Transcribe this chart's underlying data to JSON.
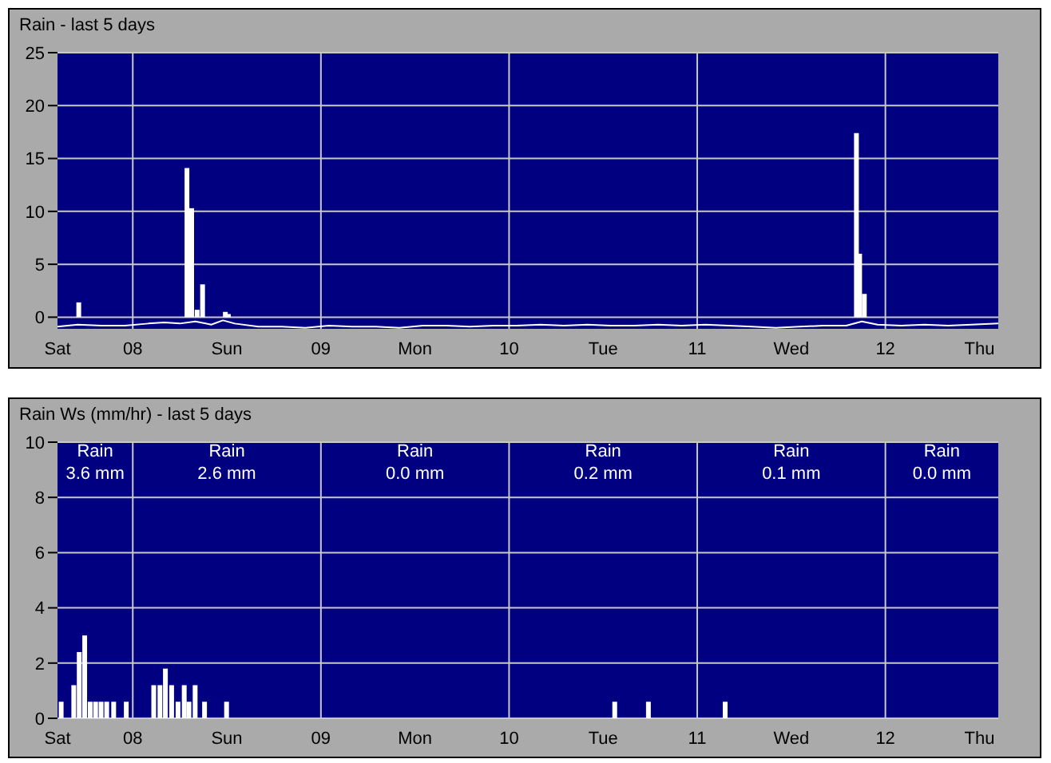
{
  "chart_data": [
    {
      "type": "bar",
      "title": "Rain - last 5 days",
      "xlim": [
        7.6,
        12.6
      ],
      "ylim": [
        -1.1,
        25
      ],
      "yticks": [
        0,
        5,
        10,
        15,
        20,
        25
      ],
      "xticks": [
        {
          "value": 7.6,
          "label": "Sat"
        },
        {
          "value": 8,
          "label": "08"
        },
        {
          "value": 8.5,
          "label": "Sun"
        },
        {
          "value": 9,
          "label": "09"
        },
        {
          "value": 9.5,
          "label": "Mon"
        },
        {
          "value": 10,
          "label": "10"
        },
        {
          "value": 10.5,
          "label": "Tue"
        },
        {
          "value": 11,
          "label": "11"
        },
        {
          "value": 11.5,
          "label": "Wed"
        },
        {
          "value": 12,
          "label": "12"
        },
        {
          "value": 12.5,
          "label": "Thu"
        }
      ],
      "grid": "y",
      "legend": false,
      "ref_lines": [
        {
          "axis": "x",
          "value": 8,
          "color": "#c8c8c8"
        },
        {
          "axis": "x",
          "value": 9,
          "color": "#c8c8c8"
        },
        {
          "axis": "x",
          "value": 10,
          "color": "#c8c8c8"
        },
        {
          "axis": "x",
          "value": 11,
          "color": "#c8c8c8"
        },
        {
          "axis": "x",
          "value": 12,
          "color": "#c8c8c8"
        }
      ],
      "series": [
        {
          "color": "#ffffff",
          "x": [
            7.713,
            8.288,
            8.313,
            8.342,
            8.371,
            8.492,
            8.508,
            11.846,
            11.863,
            11.888
          ],
          "values": [
            1.4,
            14.1,
            10.3,
            0.7,
            3.1,
            0.5,
            0.3,
            17.4,
            6.0,
            2.2
          ]
        },
        {
          "type": "line",
          "color": "#ffffff",
          "marker": "none",
          "x": [
            7.6,
            7.708,
            7.833,
            7.958,
            8.083,
            8.167,
            8.25,
            8.333,
            8.417,
            8.479,
            8.542,
            8.667,
            8.792,
            8.917,
            9.042,
            9.167,
            9.292,
            9.417,
            9.542,
            9.667,
            9.792,
            9.917,
            10.042,
            10.167,
            10.292,
            10.417,
            10.542,
            10.667,
            10.792,
            10.917,
            11.042,
            11.167,
            11.292,
            11.417,
            11.542,
            11.667,
            11.792,
            11.875,
            11.958,
            12.083,
            12.208,
            12.333,
            12.458,
            12.6
          ],
          "values": [
            -0.9,
            -0.7,
            -0.8,
            -0.8,
            -0.6,
            -0.5,
            -0.6,
            -0.4,
            -0.7,
            -0.3,
            -0.6,
            -0.9,
            -0.9,
            -1.0,
            -0.8,
            -0.9,
            -0.9,
            -1.0,
            -0.8,
            -0.8,
            -0.9,
            -0.8,
            -0.8,
            -0.7,
            -0.8,
            -0.7,
            -0.8,
            -0.8,
            -0.7,
            -0.8,
            -0.7,
            -0.8,
            -0.9,
            -1.0,
            -0.9,
            -0.8,
            -0.8,
            -0.4,
            -0.7,
            -0.8,
            -0.7,
            -0.8,
            -0.7,
            -0.6
          ]
        }
      ]
    },
    {
      "type": "bar",
      "title": "Rain Ws (mm/hr) - last 5 days",
      "xlim": [
        7.6,
        12.6
      ],
      "ylim": [
        0,
        10
      ],
      "yticks": [
        0,
        2,
        4,
        6,
        8,
        10
      ],
      "xticks": [
        {
          "value": 7.6,
          "label": "Sat"
        },
        {
          "value": 8,
          "label": "08"
        },
        {
          "value": 8.5,
          "label": "Sun"
        },
        {
          "value": 9,
          "label": "09"
        },
        {
          "value": 9.5,
          "label": "Mon"
        },
        {
          "value": 10,
          "label": "10"
        },
        {
          "value": 10.5,
          "label": "Tue"
        },
        {
          "value": 11,
          "label": "11"
        },
        {
          "value": 11.5,
          "label": "Wed"
        },
        {
          "value": 12,
          "label": "12"
        },
        {
          "value": 12.5,
          "label": "Thu"
        }
      ],
      "grid": "y",
      "legend": false,
      "ref_lines": [
        {
          "axis": "x",
          "value": 8,
          "color": "#c8c8c8"
        },
        {
          "axis": "x",
          "value": 9,
          "color": "#c8c8c8"
        },
        {
          "axis": "x",
          "value": 10,
          "color": "#c8c8c8"
        },
        {
          "axis": "x",
          "value": 11,
          "color": "#c8c8c8"
        },
        {
          "axis": "x",
          "value": 12,
          "color": "#c8c8c8"
        }
      ],
      "annotations": [
        "Rain\n3.6 mm",
        "Rain\n2.6 mm",
        "Rain\n0.0 mm",
        "Rain\n0.2 mm",
        "Rain\n0.1 mm",
        "Rain\n0.0 mm"
      ],
      "series": [
        {
          "color": "#ffffff",
          "x": [
            7.621,
            7.688,
            7.717,
            7.746,
            7.775,
            7.804,
            7.833,
            7.863,
            7.9,
            7.967,
            8.113,
            8.146,
            8.175,
            8.208,
            8.242,
            8.275,
            8.3,
            8.333,
            8.383,
            8.5,
            10.563,
            10.742,
            11.15
          ],
          "values": [
            0.6,
            1.2,
            2.4,
            3.0,
            0.6,
            0.6,
            0.6,
            0.6,
            0.6,
            0.6,
            1.2,
            1.2,
            1.8,
            1.2,
            0.6,
            1.2,
            0.6,
            1.2,
            0.6,
            0.6,
            0.6,
            0.6,
            0.6
          ]
        }
      ]
    }
  ]
}
